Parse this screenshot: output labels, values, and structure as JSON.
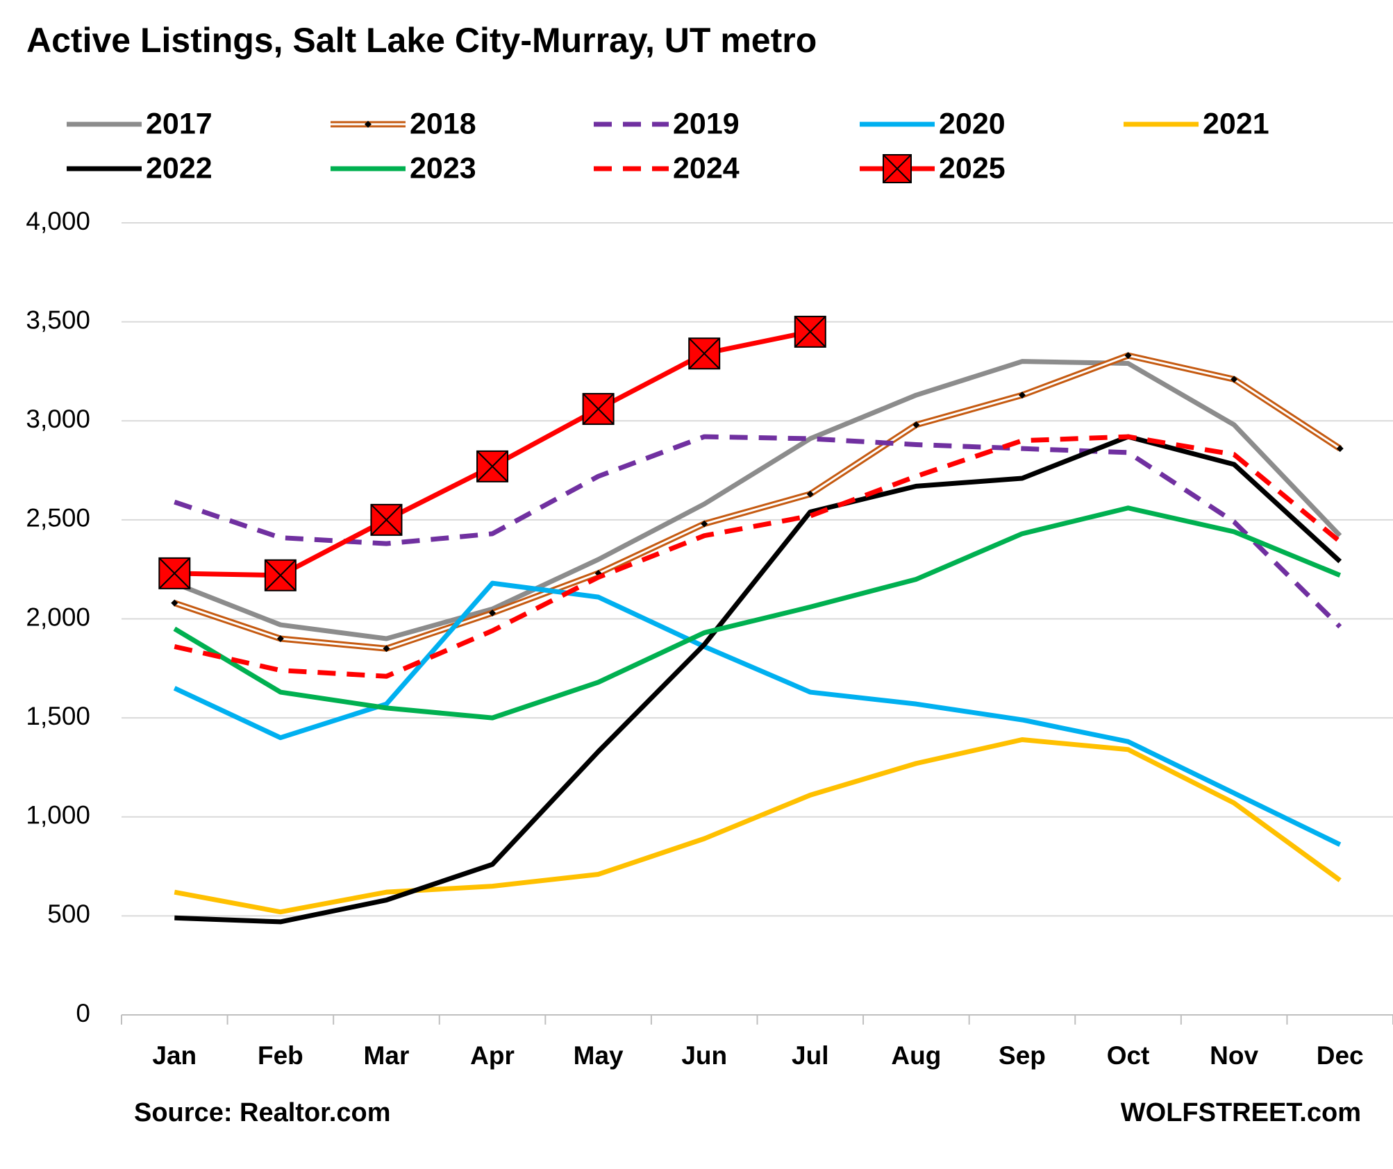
{
  "chart_data": {
    "type": "line",
    "title": "Active Listings, Salt Lake City-Murray, UT metro",
    "source": "Source: Realtor.com",
    "credit": "WOLFSTREET.com",
    "categories": [
      "Jan",
      "Feb",
      "Mar",
      "Apr",
      "May",
      "Jun",
      "Jul",
      "Aug",
      "Sep",
      "Oct",
      "Nov",
      "Dec"
    ],
    "ylim": [
      0,
      4000
    ],
    "yticks": [
      0,
      500,
      {
        "value": 1000,
        "label": "1,000"
      },
      {
        "value": 1500,
        "label": "1,500"
      },
      {
        "value": 2000,
        "label": "2,000"
      },
      {
        "value": 2500,
        "label": "2,500"
      },
      {
        "value": 3000,
        "label": "3,000"
      },
      {
        "value": 3500,
        "label": "3,500"
      },
      {
        "value": 4000,
        "label": "4,000"
      }
    ],
    "grid": true,
    "legend": "top",
    "series": [
      {
        "name": "2017",
        "color": "#8c8c8c",
        "values": [
          2180,
          1970,
          1900,
          2050,
          2300,
          2580,
          2910,
          3130,
          3300,
          3290,
          2980,
          2420
        ]
      },
      {
        "name": "2018",
        "color": "#c55a11",
        "style": "double",
        "marker": "diamond",
        "values": [
          2080,
          1900,
          1850,
          2030,
          2230,
          2480,
          2630,
          2980,
          3130,
          3330,
          3210,
          2860
        ]
      },
      {
        "name": "2019",
        "color": "#7030a0",
        "dash": true,
        "values": [
          2590,
          2410,
          2380,
          2430,
          2720,
          2920,
          2910,
          2880,
          2860,
          2840,
          2490,
          1960
        ]
      },
      {
        "name": "2020",
        "color": "#00b0f0",
        "values": [
          1650,
          1400,
          1570,
          2180,
          2110,
          1860,
          1630,
          1570,
          1490,
          1380,
          1120,
          860
        ]
      },
      {
        "name": "2021",
        "color": "#ffc000",
        "values": [
          620,
          520,
          620,
          650,
          710,
          890,
          1110,
          1270,
          1390,
          1340,
          1070,
          680
        ]
      },
      {
        "name": "2022",
        "color": "#000000",
        "values": [
          490,
          470,
          580,
          760,
          1330,
          1870,
          2540,
          2670,
          2710,
          2920,
          2780,
          2290
        ]
      },
      {
        "name": "2023",
        "color": "#00b050",
        "values": [
          1950,
          1630,
          1550,
          1500,
          1680,
          1930,
          2060,
          2200,
          2430,
          2560,
          2440,
          2220
        ]
      },
      {
        "name": "2024",
        "color": "#ff0000",
        "dash": true,
        "values": [
          1860,
          1740,
          1710,
          1940,
          2210,
          2420,
          2520,
          2720,
          2900,
          2920,
          2830,
          2390
        ]
      },
      {
        "name": "2025",
        "color": "#ff0000",
        "marker": "x-square",
        "values": [
          2230,
          2220,
          2500,
          2770,
          3060,
          3340,
          3450,
          null,
          null,
          null,
          null,
          null
        ]
      }
    ]
  }
}
